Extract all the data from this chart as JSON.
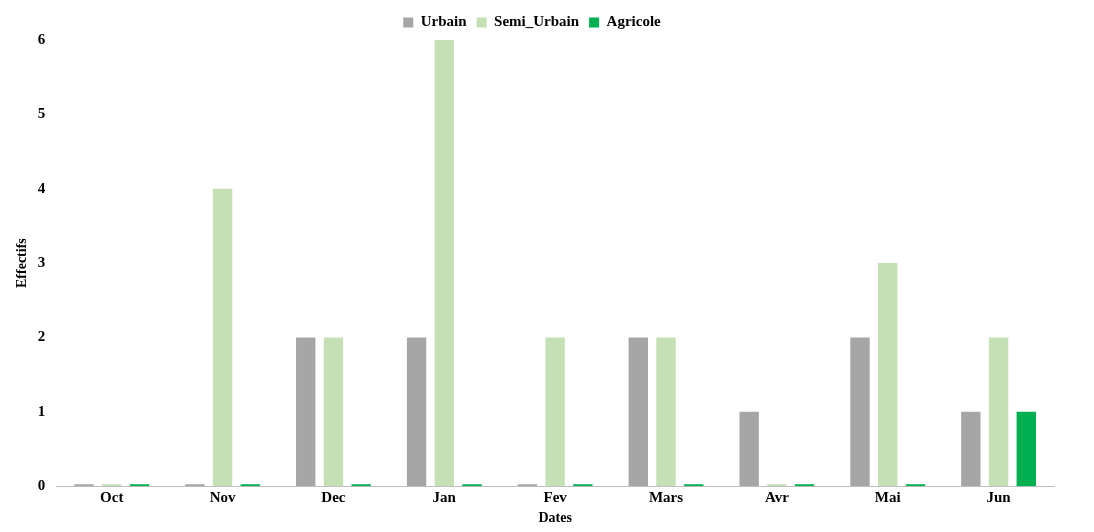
{
  "chart_data": {
    "type": "bar",
    "xlabel": "Dates",
    "ylabel": "Effectifs",
    "categories": [
      "Oct",
      "Nov",
      "Dec",
      "Jan",
      "Fev",
      "Mars",
      "Avr",
      "Mai",
      "Jun"
    ],
    "series": [
      {
        "name": "Urbain",
        "color": "#a6a6a6",
        "values": [
          0,
          0,
          2,
          2,
          0,
          2,
          1,
          2,
          1
        ]
      },
      {
        "name": "Semi_Urbain",
        "color": "#c5e0b4",
        "values": [
          0,
          4,
          2,
          6,
          2,
          2,
          0,
          3,
          2
        ]
      },
      {
        "name": "Agricole",
        "color": "#00b050",
        "values": [
          0,
          0,
          0,
          0,
          0,
          0,
          0,
          0,
          1
        ]
      }
    ],
    "ylim": [
      0,
      6
    ],
    "yticks": [
      0,
      1,
      2,
      3,
      4,
      5,
      6
    ],
    "grid": false,
    "legend": "top"
  }
}
